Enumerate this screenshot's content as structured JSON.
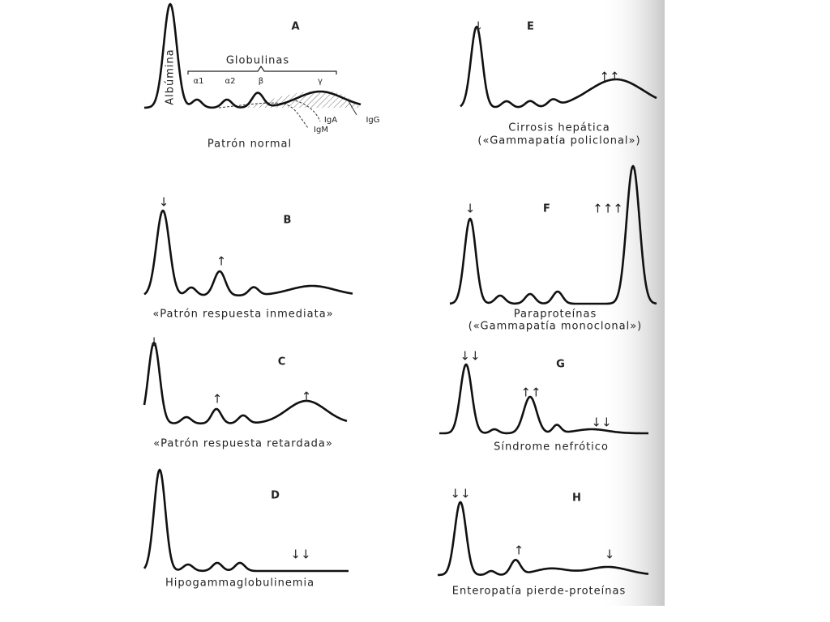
{
  "panels": [
    {
      "letter": "A",
      "caption": [
        "Patrón normal"
      ],
      "title": "Globulinas",
      "albumin_label": "Albúmina",
      "fractions": [
        "α1",
        "α2",
        "β",
        "γ"
      ],
      "immunoglobulins": [
        "IgA",
        "IgM",
        "IgG"
      ],
      "arrows": []
    },
    {
      "letter": "B",
      "caption": [
        "«Patrón respuesta inmediata»"
      ],
      "arrows": [
        "↓",
        "↑"
      ]
    },
    {
      "letter": "C",
      "caption": [
        "«Patrón respuesta retardada»"
      ],
      "arrows": [
        "↓",
        "↑",
        "↑"
      ]
    },
    {
      "letter": "D",
      "caption": [
        "Hipogammaglobulinemia"
      ],
      "arrows": [
        "↓↓"
      ]
    },
    {
      "letter": "E",
      "caption": [
        "Cirrosis hepática",
        "(«Gammapatía policlonal»)"
      ],
      "arrows": [
        "↓",
        "↑↑"
      ]
    },
    {
      "letter": "F",
      "caption": [
        "Paraproteínas",
        "(«Gammapatía monoclonal»)"
      ],
      "arrows": [
        "↓",
        "↑↑↑"
      ]
    },
    {
      "letter": "G",
      "caption": [
        "Síndrome nefrótico"
      ],
      "arrows": [
        "↓↓",
        "↑↑",
        "↓↓"
      ]
    },
    {
      "letter": "H",
      "caption": [
        "Enteropatía pierde-proteínas"
      ],
      "arrows": [
        "↓↓",
        "↑",
        "↓"
      ]
    }
  ]
}
